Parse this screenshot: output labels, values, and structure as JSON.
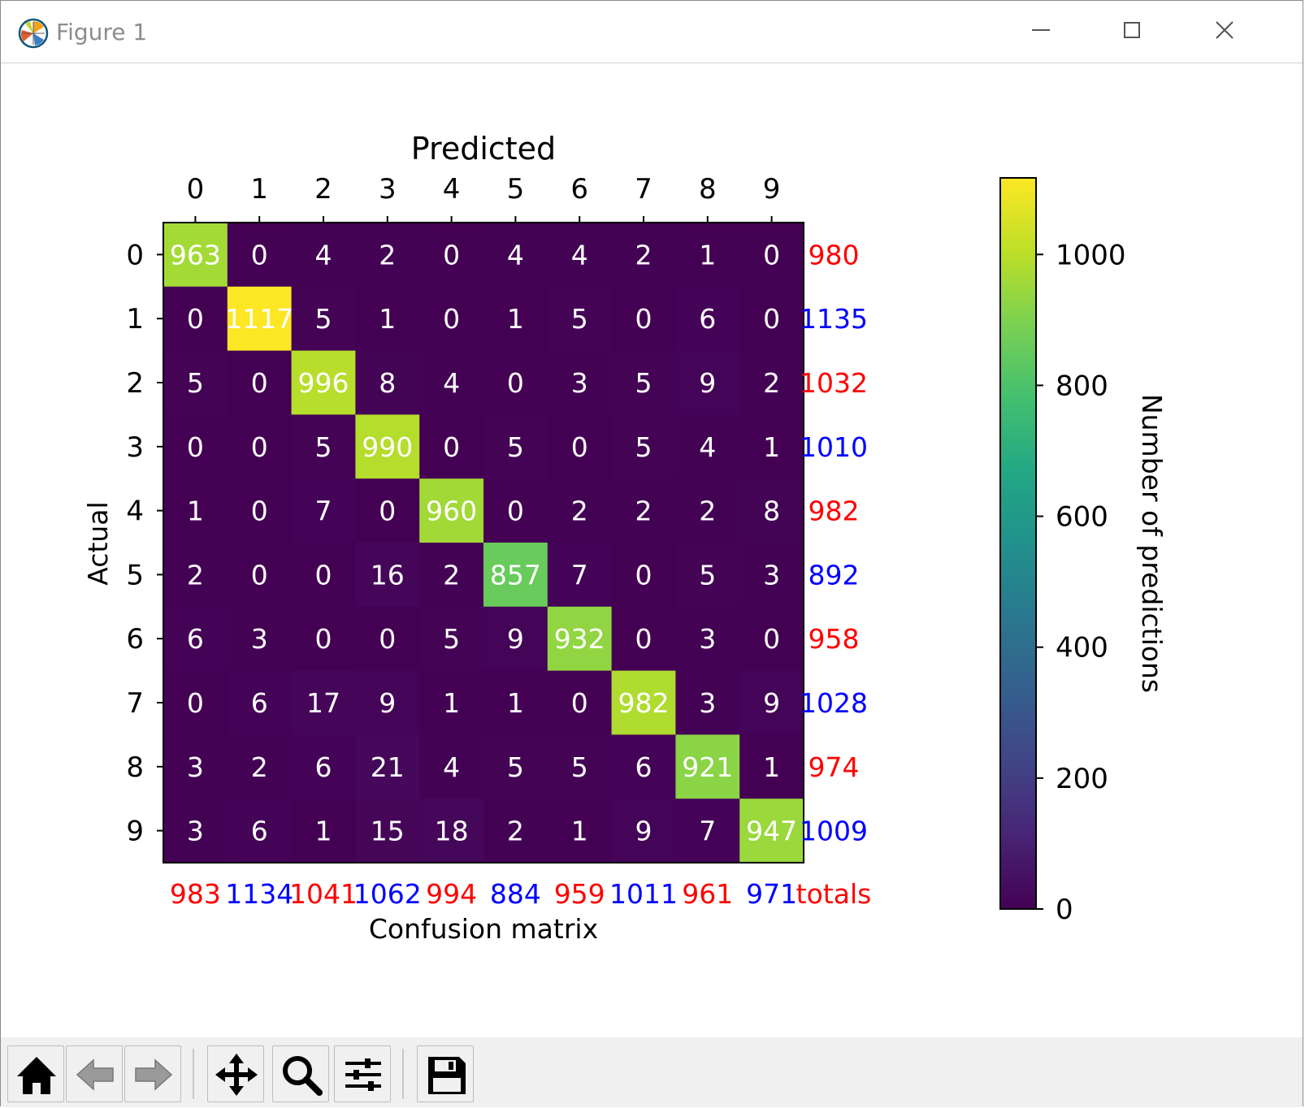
{
  "window": {
    "title": "Figure 1",
    "controls": {
      "minimize": "minimize",
      "maximize": "maximize",
      "close": "close"
    }
  },
  "toolbar": {
    "buttons": [
      "home-icon",
      "back-arrow-icon",
      "forward-arrow-icon",
      "pan-move-icon",
      "zoom-magnifier-icon",
      "configure-subplots-icon",
      "save-floppy-icon"
    ]
  },
  "chart_data": {
    "type": "heatmap",
    "title": "Predicted",
    "xlabel": "Confusion matrix",
    "ylabel": "Actual",
    "x_categories": [
      "0",
      "1",
      "2",
      "3",
      "4",
      "5",
      "6",
      "7",
      "8",
      "9"
    ],
    "y_categories": [
      "0",
      "1",
      "2",
      "3",
      "4",
      "5",
      "6",
      "7",
      "8",
      "9"
    ],
    "matrix": [
      [
        963,
        0,
        4,
        2,
        0,
        4,
        4,
        2,
        1,
        0
      ],
      [
        0,
        1117,
        5,
        1,
        0,
        1,
        5,
        0,
        6,
        0
      ],
      [
        5,
        0,
        996,
        8,
        4,
        0,
        3,
        5,
        9,
        2
      ],
      [
        0,
        0,
        5,
        990,
        0,
        5,
        0,
        5,
        4,
        1
      ],
      [
        1,
        0,
        7,
        0,
        960,
        0,
        2,
        2,
        2,
        8
      ],
      [
        2,
        0,
        0,
        16,
        2,
        857,
        7,
        0,
        5,
        3
      ],
      [
        6,
        3,
        0,
        0,
        5,
        9,
        932,
        0,
        3,
        0
      ],
      [
        0,
        6,
        17,
        9,
        1,
        1,
        0,
        982,
        3,
        9
      ],
      [
        3,
        2,
        6,
        21,
        4,
        5,
        5,
        6,
        921,
        1
      ],
      [
        3,
        6,
        1,
        15,
        18,
        2,
        1,
        9,
        7,
        947
      ]
    ],
    "row_totals": [
      "980",
      "1135",
      "1032",
      "1010",
      "982",
      "892",
      "958",
      "1028",
      "974",
      "1009"
    ],
    "column_totals": [
      "983",
      "1134",
      "1041",
      "1062",
      "994",
      "884",
      "959",
      "1011",
      "961",
      "971"
    ],
    "totals_label": "totals",
    "total_colors": [
      "#ff0000",
      "#0000ff"
    ],
    "colorbar": {
      "label": "Number of predictions",
      "colormap": "viridis",
      "range": [
        0,
        1117
      ],
      "ticks": [
        "0",
        "200",
        "400",
        "600",
        "800",
        "1000"
      ],
      "tick_values": [
        0,
        200,
        400,
        600,
        800,
        1000
      ]
    }
  }
}
